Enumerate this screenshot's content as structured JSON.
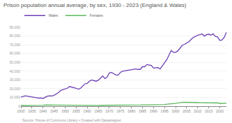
{
  "chart_data": {
    "type": "line",
    "title": "Prison population annual average, by sex, 1930 - 2023 (England & Wales)",
    "annotations": [
      "Source: House of Commons Library • Created with Datawrapper"
    ],
    "x": [
      1930,
      1931,
      1932,
      1933,
      1934,
      1935,
      1936,
      1937,
      1938,
      1939,
      1940,
      1941,
      1942,
      1943,
      1944,
      1945,
      1946,
      1947,
      1948,
      1949,
      1950,
      1951,
      1952,
      1953,
      1954,
      1955,
      1956,
      1957,
      1958,
      1959,
      1960,
      1961,
      1962,
      1963,
      1964,
      1965,
      1966,
      1967,
      1968,
      1969,
      1970,
      1971,
      1972,
      1973,
      1974,
      1975,
      1976,
      1977,
      1978,
      1979,
      1980,
      1981,
      1982,
      1983,
      1984,
      1985,
      1986,
      1987,
      1988,
      1989,
      1990,
      1991,
      1992,
      1993,
      1994,
      1995,
      1996,
      1997,
      1998,
      1999,
      2000,
      2001,
      2002,
      2003,
      2004,
      2005,
      2006,
      2007,
      2008,
      2009,
      2010,
      2011,
      2012,
      2013,
      2014,
      2015,
      2016,
      2017,
      2018,
      2019,
      2020,
      2021,
      2022,
      2023
    ],
    "series": [
      {
        "name": "Males",
        "color": "#6c3fb5",
        "values": [
          10500,
          11000,
          11800,
          11500,
          11000,
          10300,
          9800,
          9500,
          9300,
          9500,
          8800,
          10200,
          11500,
          11800,
          11700,
          12500,
          14000,
          15500,
          18000,
          19000,
          19500,
          20500,
          22500,
          22000,
          21500,
          20500,
          19500,
          20500,
          23000,
          25500,
          26000,
          28500,
          30000,
          29500,
          28500,
          29500,
          32000,
          34500,
          31500,
          33000,
          38000,
          38500,
          37000,
          35500,
          35500,
          38500,
          40000,
          40500,
          40500,
          41000,
          41500,
          42000,
          42500,
          42000,
          42000,
          45000,
          45000,
          47500,
          47000,
          46500,
          43500,
          43500,
          44000,
          42500,
          46500,
          49500,
          53000,
          58500,
          63500,
          61500,
          61500,
          63000,
          66500,
          69500,
          70500,
          72000,
          73500,
          76000,
          78500,
          79500,
          81000,
          81500,
          82500,
          80000,
          81500,
          82000,
          81000,
          82500,
          79500,
          79000,
          75000,
          75500,
          78500,
          84500
        ]
      },
      {
        "name": "Females",
        "color": "#5cb85c",
        "values": [
          800,
          800,
          800,
          800,
          750,
          750,
          750,
          750,
          800,
          850,
          1100,
          1400,
          1500,
          1500,
          1450,
          1400,
          1300,
          1300,
          1250,
          1200,
          1150,
          1100,
          1050,
          1000,
          950,
          950,
          900,
          950,
          1000,
          1000,
          1000,
          1000,
          950,
          950,
          900,
          950,
          1000,
          1000,
          950,
          950,
          1000,
          1000,
          1000,
          1050,
          1100,
          1150,
          1200,
          1300,
          1350,
          1400,
          1450,
          1450,
          1450,
          1350,
          1450,
          1550,
          1550,
          1600,
          1750,
          1750,
          1600,
          1550,
          1600,
          1550,
          1800,
          1950,
          2300,
          2700,
          3100,
          3200,
          3300,
          3600,
          4200,
          4400,
          4400,
          4450,
          4450,
          4300,
          4400,
          4250,
          4200,
          4150,
          4100,
          3900,
          3850,
          3950,
          3850,
          3950,
          3800,
          3800,
          3200,
          3150,
          3250,
          3550
        ]
      }
    ],
    "xlim": [
      1930,
      2023
    ],
    "xticks": [
      1930,
      1935,
      1940,
      1945,
      1950,
      1955,
      1960,
      1965,
      1970,
      1975,
      1980,
      1985,
      1990,
      1995,
      2000,
      2005,
      2010,
      2015,
      2020
    ],
    "ylim": [
      0,
      90000
    ],
    "yticks": [
      0,
      {
        "value": 10000,
        "label": "10,000"
      },
      {
        "value": 20000,
        "label": "20,000"
      },
      {
        "value": 30000,
        "label": "30,000"
      },
      {
        "value": 40000,
        "label": "40,000"
      },
      {
        "value": 50000,
        "label": "50,000"
      },
      {
        "value": 60000,
        "label": "60,000"
      },
      {
        "value": 70000,
        "label": "70,000"
      },
      {
        "value": 80000,
        "label": "80,000"
      },
      {
        "value": 90000,
        "label": "90,000"
      }
    ],
    "grid": true,
    "legend": "top-left"
  }
}
